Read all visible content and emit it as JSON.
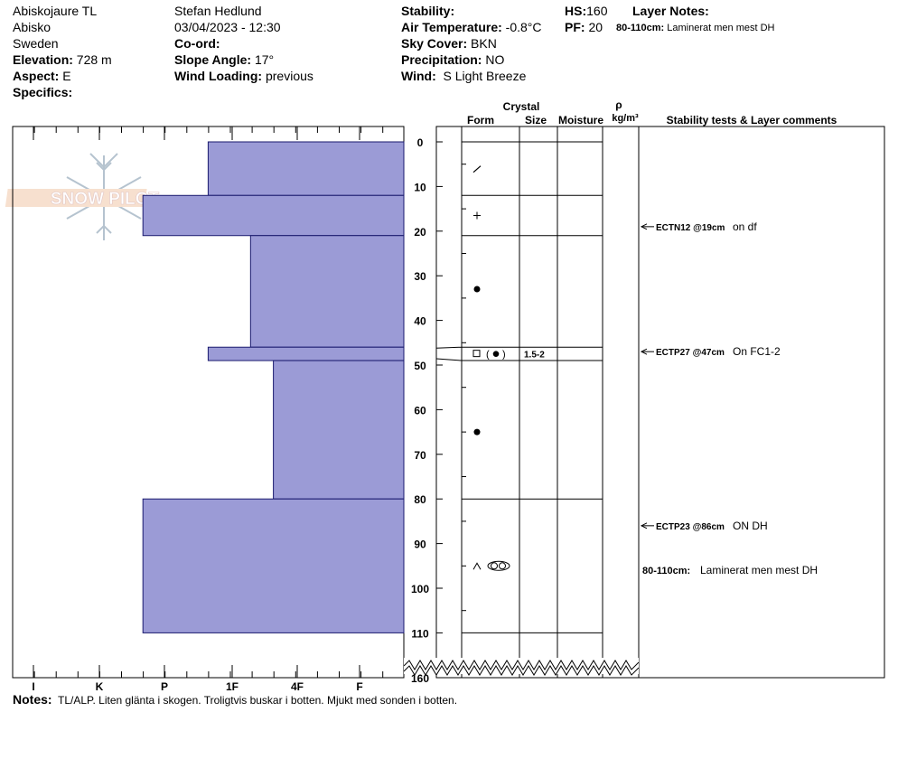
{
  "header": {
    "site": "Abiskojaure TL",
    "location": "Abisko",
    "country": "Sweden",
    "elevation_label": "Elevation:",
    "elevation_value": "728 m",
    "aspect_label": "Aspect:",
    "aspect_value": "E",
    "specifics_label": "Specifics:",
    "observer": "Stefan Hedlund",
    "datetime": "03/04/2023 - 12:30",
    "coord_label": "Co-ord:",
    "slope_label": "Slope Angle:",
    "slope_value": "17°",
    "wind_loading_label": "Wind Loading:",
    "wind_loading_value": "previous",
    "stability_label": "Stability:",
    "air_temp_label": "Air Temperature:",
    "air_temp_value": "-0.8°C",
    "sky_label": "Sky Cover:",
    "sky_value": "BKN",
    "precip_label": "Precipitation:",
    "precip_value": "NO",
    "wind_label": "Wind:",
    "wind_value": "S Light Breeze",
    "hs_label": "HS:",
    "hs_value": "160",
    "pf_label": "PF:",
    "pf_value": "20",
    "layer_notes_label": "Layer Notes:",
    "layer_note_range": "80-110cm:",
    "layer_note_text": "Laminerat men mest DH"
  },
  "columns": {
    "crystal": "Crystal",
    "form": "Form",
    "size": "Size",
    "moisture": "Moisture",
    "rho": "ρ",
    "density_unit": "kg/m³",
    "comments": "Stability tests & Layer comments"
  },
  "logo_text": "SNOW PILOT",
  "notes_label": "Notes:",
  "notes_text": "TL/ALP. Liten glänta i skogen. Troligtvis buskar i botten. Mjukt med sonden i botten.",
  "chart_data": {
    "type": "bar",
    "depth_ticks": [
      0,
      10,
      20,
      30,
      40,
      50,
      60,
      70,
      80,
      90,
      100,
      110,
      160
    ],
    "hardness_ticks": [
      "I",
      "K",
      "P",
      "1F",
      "4F",
      "F"
    ],
    "hardness_scale_note": "hand hardness index, I=0 ... 4F=4, F=5",
    "bar_color": "#9b9bd6",
    "hardness_profile": [
      {
        "top": 0,
        "bottom": 12,
        "hardness": 3.0
      },
      {
        "top": 12,
        "bottom": 21,
        "hardness": 4.0
      },
      {
        "top": 21,
        "bottom": 46,
        "hardness": 2.35
      },
      {
        "top": 46,
        "bottom": 49,
        "hardness": 3.0
      },
      {
        "top": 49,
        "bottom": 80,
        "hardness": 2.0
      },
      {
        "top": 80,
        "bottom": 110,
        "hardness": 4.0
      }
    ],
    "layer_boundaries": [
      0,
      12,
      21,
      46,
      49,
      80,
      110
    ],
    "layers": [
      {
        "depth": 6,
        "form": "decomposing-fragments",
        "size": ""
      },
      {
        "depth": 16.5,
        "form": "new-snow",
        "size": ""
      },
      {
        "depth": 33,
        "form": "rounds",
        "size": ""
      },
      {
        "depth": 47.5,
        "form": "faceted-rounds",
        "size": "1.5-2"
      },
      {
        "depth": 65,
        "form": "rounds",
        "size": ""
      },
      {
        "depth": 95,
        "form": "depth-hoar-mix",
        "size": ""
      }
    ],
    "stability_tests": [
      {
        "depth": 19,
        "code": "ECTN12 @19cm",
        "comment": "on df"
      },
      {
        "depth": 47,
        "code": "ECTP27 @47cm",
        "comment": "On FC1-2"
      },
      {
        "depth": 86,
        "code": "ECTP23 @86cm",
        "comment": "ON DH"
      }
    ],
    "layer_comment": {
      "depth": 96,
      "range": "80-110cm:",
      "text": "Laminerat men mest DH"
    }
  }
}
